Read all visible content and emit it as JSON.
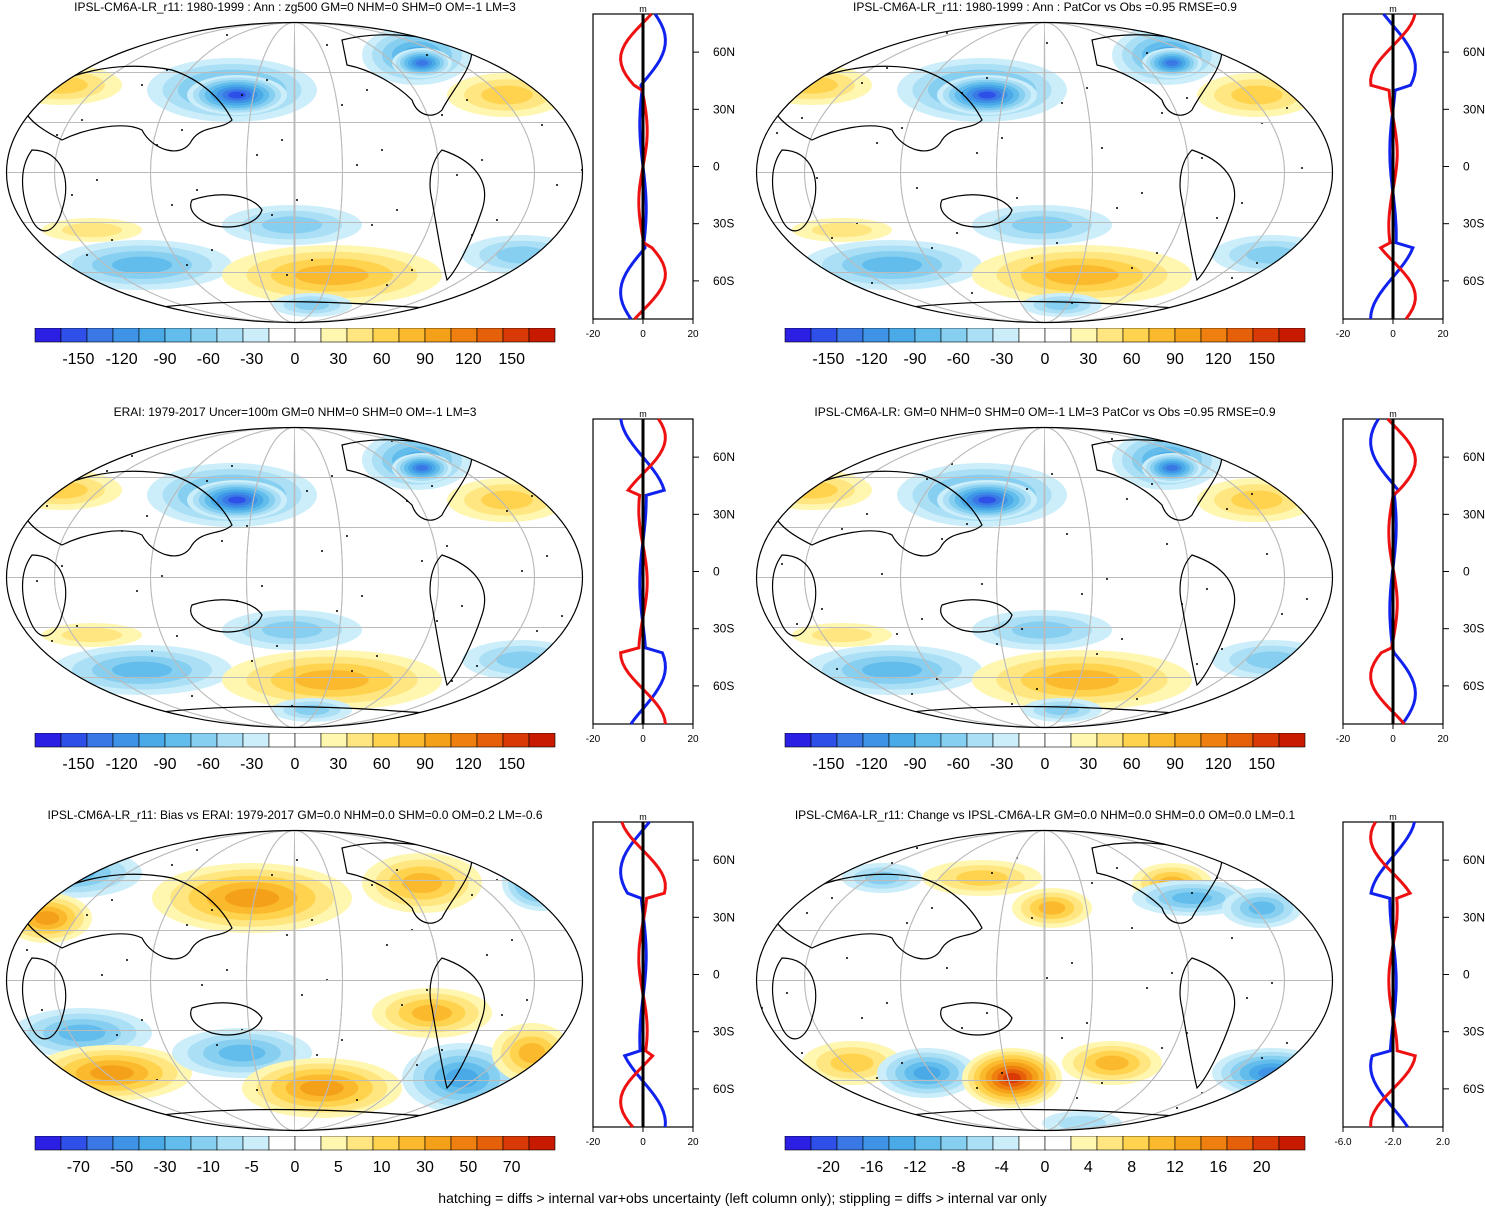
{
  "colors": {
    "neg": [
      "#2a1fe3",
      "#2f50e8",
      "#3a78e6",
      "#3f93e6",
      "#4aaae8",
      "#63bdec",
      "#86cff0",
      "#aadff5",
      "#cbeefa"
    ],
    "pos": [
      "#fff6b0",
      "#ffe680",
      "#ffd34d",
      "#fbb92e",
      "#f5a019",
      "#ef8010",
      "#e6600a",
      "#d93a05",
      "#c71a00"
    ],
    "land": "#000000",
    "grid": "#bbbbbb",
    "line_red": "#ee1111",
    "line_blue": "#1122ee"
  },
  "panels": [
    {
      "title": "IPSL-CM6A-LR_r11: 1980-1999 : Ann : zg500 GM=0 NHM=0 SHM=0 OM=-1 LM=3",
      "colorbar_labels": [
        "-150",
        "-120",
        "-90",
        "-60",
        "-30",
        "0",
        "30",
        "60",
        "90",
        "120",
        "150"
      ],
      "profile": {
        "unit": "m",
        "lat_labels": [
          "60N",
          "30N",
          "0",
          "30S",
          "60S"
        ],
        "x_labels": [
          "-20",
          "0",
          "20"
        ]
      }
    },
    {
      "title": "IPSL-CM6A-LR_r11: 1980-1999 : Ann : PatCor vs Obs =0.95 RMSE=0.9",
      "colorbar_labels": [
        "-150",
        "-120",
        "-90",
        "-60",
        "-30",
        "0",
        "30",
        "60",
        "90",
        "120",
        "150"
      ],
      "profile": {
        "unit": "m",
        "lat_labels": [
          "60N",
          "30N",
          "0",
          "30S",
          "60S"
        ],
        "x_labels": [
          "-20",
          "0",
          "20"
        ]
      }
    },
    {
      "title": "ERAI: 1979-2017 Uncer=100m GM=0 NHM=0 SHM=0 OM=-1 LM=3",
      "colorbar_labels": [
        "-150",
        "-120",
        "-90",
        "-60",
        "-30",
        "0",
        "30",
        "60",
        "90",
        "120",
        "150"
      ],
      "profile": {
        "unit": "m",
        "lat_labels": [
          "60N",
          "30N",
          "0",
          "30S",
          "60S"
        ],
        "x_labels": [
          "-20",
          "0",
          "20"
        ]
      }
    },
    {
      "title": "IPSL-CM6A-LR: GM=0 NHM=0 SHM=0 OM=-1 LM=3 PatCor vs Obs =0.95 RMSE=0.9",
      "colorbar_labels": [
        "-150",
        "-120",
        "-90",
        "-60",
        "-30",
        "0",
        "30",
        "60",
        "90",
        "120",
        "150"
      ],
      "profile": {
        "unit": "m",
        "lat_labels": [
          "60N",
          "30N",
          "0",
          "30S",
          "60S"
        ],
        "x_labels": [
          "-20",
          "0",
          "20"
        ]
      }
    },
    {
      "title": "IPSL-CM6A-LR_r11: Bias vs ERAI: 1979-2017 GM=0.0 NHM=0.0 SHM=0.0 OM=0.2 LM=-0.6",
      "colorbar_labels": [
        "-70",
        "-50",
        "-30",
        "-10",
        "-5",
        "0",
        "5",
        "10",
        "30",
        "50",
        "70"
      ],
      "profile": {
        "unit": "m",
        "lat_labels": [
          "60N",
          "30N",
          "0",
          "30S",
          "60S"
        ],
        "x_labels": [
          "-20",
          "0",
          "20"
        ]
      }
    },
    {
      "title": "IPSL-CM6A-LR_r11: Change vs IPSL-CM6A-LR GM=0.0 NHM=0.0 SHM=0.0 OM=0.0 LM=0.1",
      "colorbar_labels": [
        "-20",
        "-16",
        "-12",
        "-8",
        "-4",
        "0",
        "4",
        "8",
        "12",
        "16",
        "20"
      ],
      "profile": {
        "unit": "m",
        "lat_labels": [
          "60N",
          "30N",
          "0",
          "30S",
          "60S"
        ],
        "x_labels": [
          "-6.0",
          "-2.0",
          "2.0"
        ]
      }
    }
  ],
  "footer": "hatching = diffs > internal var+obs uncertainty (left column only); stippling = diffs > internal var only"
}
